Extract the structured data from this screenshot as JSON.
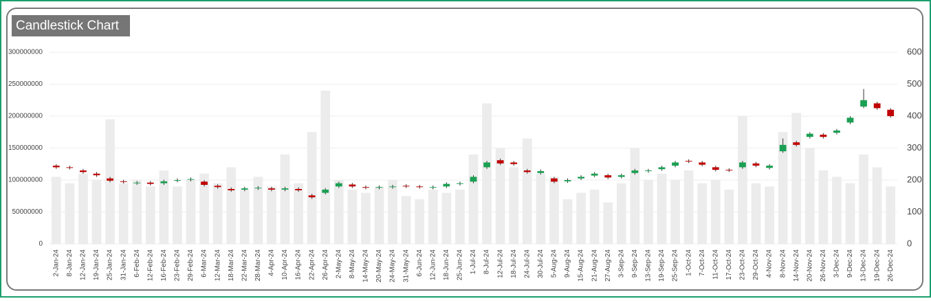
{
  "chart_data": {
    "type": "candlestick",
    "title": "Candlestick Chart",
    "categories": [
      "2-Jan-24",
      "8-Jan-24",
      "12-Jan-24",
      "19-Jan-24",
      "25-Jan-24",
      "31-Jan-24",
      "6-Feb-24",
      "12-Feb-24",
      "16-Feb-24",
      "23-Feb-24",
      "29-Feb-24",
      "6-Mar-24",
      "12-Mar-24",
      "18-Mar-24",
      "22-Mar-24",
      "28-Mar-24",
      "4-Apr-24",
      "10-Apr-24",
      "16-Apr-24",
      "22-Apr-24",
      "26-Apr-24",
      "2-May-24",
      "8-May-24",
      "14-May-24",
      "20-May-24",
      "24-May-24",
      "31-May-24",
      "6-Jun-24",
      "12-Jun-24",
      "18-Jun-24",
      "25-Jun-24",
      "1-Jul-24",
      "8-Jul-24",
      "12-Jul-24",
      "18-Jul-24",
      "24-Jul-24",
      "30-Jul-24",
      "5-Aug-24",
      "9-Aug-24",
      "15-Aug-24",
      "21-Aug-24",
      "27-Aug-24",
      "3-Sep-24",
      "9-Sep-24",
      "13-Sep-24",
      "19-Sep-24",
      "25-Sep-24",
      "1-Oct-24",
      "7-Oct-24",
      "11-Oct-24",
      "17-Oct-24",
      "23-Oct-24",
      "29-Oct-24",
      "4-Nov-24",
      "8-Nov-24",
      "14-Nov-24",
      "20-Nov-24",
      "26-Nov-24",
      "3-Dec-24",
      "9-Dec-24",
      "13-Dec-24",
      "19-Dec-24",
      "26-Dec-24"
    ],
    "open": [
      245,
      240,
      230,
      220,
      205,
      196,
      190,
      192,
      190,
      198,
      201,
      195,
      182,
      172,
      170,
      174,
      174,
      170,
      172,
      152,
      160,
      180,
      186,
      178,
      176,
      178,
      182,
      180,
      176,
      180,
      188,
      195,
      240,
      262,
      255,
      230,
      222,
      205,
      196,
      205,
      214,
      215,
      210,
      222,
      228,
      234,
      245,
      260,
      255,
      240,
      232,
      240,
      252,
      238,
      290,
      318,
      335,
      342,
      348,
      380,
      430,
      440,
      420
    ],
    "high": [
      250,
      245,
      235,
      225,
      210,
      201,
      197,
      197,
      201,
      205,
      208,
      200,
      187,
      177,
      179,
      181,
      179,
      179,
      177,
      157,
      175,
      195,
      191,
      183,
      183,
      185,
      187,
      185,
      183,
      193,
      195,
      215,
      260,
      267,
      260,
      235,
      233,
      210,
      205,
      215,
      225,
      220,
      220,
      235,
      235,
      245,
      260,
      265,
      260,
      245,
      237,
      260,
      257,
      250,
      330,
      323,
      350,
      347,
      360,
      400,
      485,
      445,
      425
    ],
    "low": [
      235,
      233,
      220,
      210,
      193,
      189,
      185,
      183,
      185,
      193,
      196,
      180,
      173,
      163,
      165,
      169,
      165,
      165,
      163,
      141,
      155,
      175,
      175,
      171,
      171,
      173,
      175,
      173,
      171,
      175,
      183,
      190,
      235,
      247,
      245,
      220,
      217,
      190,
      191,
      200,
      209,
      203,
      205,
      217,
      223,
      229,
      240,
      253,
      243,
      227,
      225,
      235,
      240,
      233,
      285,
      305,
      330,
      330,
      343,
      375,
      425,
      420,
      395
    ],
    "close": [
      240,
      238,
      225,
      215,
      198,
      194,
      192,
      188,
      196,
      200,
      203,
      185,
      178,
      168,
      174,
      176,
      170,
      174,
      168,
      146,
      170,
      190,
      180,
      176,
      178,
      180,
      180,
      178,
      178,
      188,
      190,
      210,
      255,
      252,
      250,
      225,
      228,
      195,
      200,
      210,
      220,
      208,
      215,
      230,
      230,
      240,
      255,
      258,
      248,
      232,
      230,
      255,
      245,
      245,
      310,
      310,
      345,
      335,
      355,
      395,
      450,
      425,
      400
    ],
    "volume": [
      105000000,
      95000000,
      110000000,
      100000000,
      195000000,
      95000000,
      100000000,
      90000000,
      115000000,
      90000000,
      100000000,
      110000000,
      95000000,
      120000000,
      85000000,
      105000000,
      90000000,
      140000000,
      95000000,
      175000000,
      240000000,
      100000000,
      85000000,
      80000000,
      90000000,
      100000000,
      75000000,
      70000000,
      85000000,
      80000000,
      85000000,
      140000000,
      220000000,
      150000000,
      120000000,
      165000000,
      110000000,
      105000000,
      70000000,
      80000000,
      85000000,
      65000000,
      95000000,
      150000000,
      100000000,
      110000000,
      100000000,
      115000000,
      95000000,
      100000000,
      85000000,
      200000000,
      95000000,
      90000000,
      175000000,
      205000000,
      150000000,
      115000000,
      105000000,
      95000000,
      140000000,
      120000000,
      90000000
    ],
    "up_color": "#1aa053",
    "down_color": "#c00000",
    "volume_color": "#ececec",
    "ylim": [
      0,
      300000000
    ],
    "yticks": [
      0,
      50000000,
      100000000,
      150000000,
      200000000,
      250000000,
      300000000
    ],
    "y2lim": [
      0,
      600
    ],
    "y2ticks": [
      0,
      100,
      200,
      300,
      400,
      500,
      600
    ],
    "grid": true
  }
}
